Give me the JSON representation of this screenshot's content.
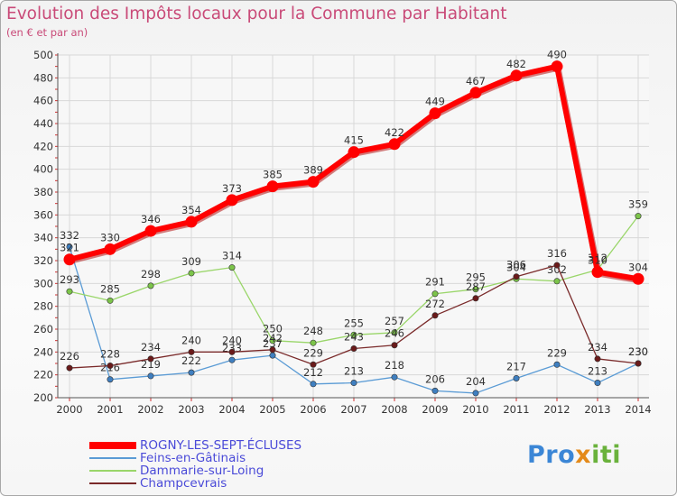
{
  "header": {
    "title": "Evolution des Impôts locaux pour la Commune par Habitant",
    "subtitle": "(en € et par an)"
  },
  "logo": {
    "part1": "Pro",
    "part2": "x",
    "part3": "iti"
  },
  "chart_data": {
    "type": "line",
    "title": "Evolution des Impôts locaux pour la Commune par Habitant",
    "subtitle": "(en € et par an)",
    "xlabel": "",
    "ylabel": "",
    "categories": [
      "2000",
      "2001",
      "2002",
      "2003",
      "2004",
      "2005",
      "2006",
      "2007",
      "2008",
      "2009",
      "2010",
      "2011",
      "2012",
      "2013",
      "2014"
    ],
    "ylim": [
      200,
      500
    ],
    "yticks": [
      200,
      220,
      240,
      260,
      280,
      300,
      320,
      340,
      360,
      380,
      400,
      420,
      440,
      460,
      480,
      500
    ],
    "grid": true,
    "legend_position": "bottom-left",
    "series": [
      {
        "name": "Feins-en-Gâtinais",
        "color": "#5a9bd5",
        "dot_color": "#3f7fc0",
        "values": [
          332,
          216,
          219,
          222,
          233,
          237,
          212,
          213,
          218,
          206,
          204,
          217,
          229,
          213,
          230
        ],
        "labels": [
          "332",
          "216",
          "219",
          "222",
          "233",
          "237",
          "212",
          "213",
          "218",
          "206",
          "204",
          "217",
          "229",
          "213",
          "230"
        ]
      },
      {
        "name": "Dammarie-sur-Loing",
        "color": "#9ad66a",
        "dot_color": "#7cc44a",
        "values": [
          293,
          285,
          298,
          309,
          314,
          250,
          248,
          255,
          257,
          291,
          295,
          304,
          302,
          312,
          359
        ],
        "labels": [
          "293",
          "285",
          "298",
          "309",
          "314",
          "250",
          "248",
          "255",
          "257",
          "291",
          "295",
          "304",
          "302",
          "312",
          "359"
        ]
      },
      {
        "name": "Champcevrais",
        "color": "#7a2a2a",
        "dot_color": "#6a1a1a",
        "values": [
          226,
          228,
          234,
          240,
          240,
          242,
          229,
          243,
          246,
          272,
          287,
          306,
          316,
          234,
          230
        ],
        "labels": [
          "226",
          "228",
          "234",
          "240",
          "240",
          "242",
          "229",
          "243",
          "246",
          "272",
          "287",
          "306",
          "316",
          "234",
          "230"
        ]
      },
      {
        "name": "ROGNY-LES-SEPT-ÉCLUSES",
        "color": "#ff0000",
        "dot_color": "#ff0000",
        "values": [
          321,
          330,
          346,
          354,
          373,
          385,
          389,
          415,
          422,
          449,
          467,
          482,
          490,
          310,
          304
        ],
        "labels": [
          "321",
          "330",
          "346",
          "354",
          "373",
          "385",
          "389",
          "415",
          "422",
          "449",
          "467",
          "482",
          "490",
          "310",
          "304"
        ]
      }
    ],
    "legend": [
      {
        "name": "ROGNY-LES-SEPT-ÉCLUSES",
        "color": "#ff0000"
      },
      {
        "name": "Feins-en-Gâtinais",
        "color": "#5a9bd5"
      },
      {
        "name": "Dammarie-sur-Loing",
        "color": "#9ad66a"
      },
      {
        "name": "Champcevrais",
        "color": "#7a2a2a"
      }
    ]
  }
}
